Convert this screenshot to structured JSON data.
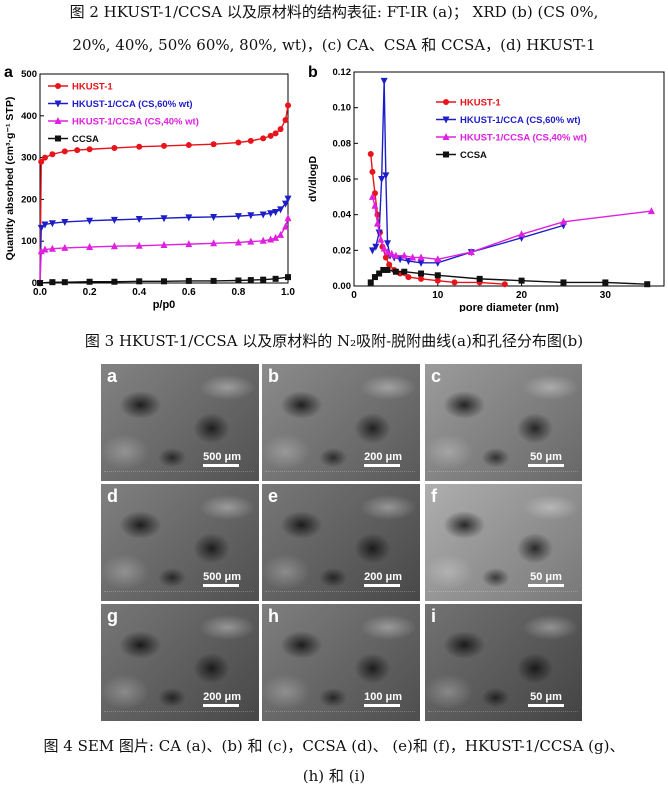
{
  "captions": {
    "fig2_line1": "图 2 HKUST-1/CCSA 以及原材料的结构表征: FT-IR (a)； XRD (b) (CS 0%,",
    "fig2_line2": "20%, 40%, 50% 60%, 80%, wt)，(c) CA、CSA 和 CCSA，(d) HKUST-1",
    "fig3": "图 3 HKUST-1/CCSA 以及原材料的 N₂吸附-脱附曲线(a)和孔径分布图(b)",
    "fig4_line1": "图 4 SEM 图片: CA (a)、(b)  和  (c)，CCSA (d)、  (e)和  (f)，HKUST-1/CCSA (g)、",
    "fig4_line2": "(h)  和  (i)"
  },
  "chart_data": [
    {
      "type": "line",
      "panel": "a",
      "xlabel": "p/p0",
      "ylabel": "Quantity absorbed (cm³·g⁻¹ STP)",
      "xlim": [
        0.0,
        1.0
      ],
      "ylim": [
        0,
        500
      ],
      "xticks": [
        "0.0",
        "0.2",
        "0.4",
        "0.6",
        "0.8",
        "1.0"
      ],
      "yticks": [
        "0",
        "100",
        "200",
        "300",
        "400",
        "500"
      ],
      "legend_position": "top-left",
      "series": [
        {
          "name": "HKUST-1",
          "color": "#e8141b",
          "marker": "circle",
          "x": [
            0.0,
            0.005,
            0.02,
            0.05,
            0.1,
            0.15,
            0.2,
            0.3,
            0.4,
            0.5,
            0.6,
            0.7,
            0.8,
            0.85,
            0.9,
            0.93,
            0.95,
            0.97,
            0.99,
            1.0
          ],
          "y": [
            0,
            290,
            300,
            308,
            315,
            318,
            320,
            323,
            326,
            328,
            330,
            332,
            336,
            340,
            346,
            352,
            358,
            368,
            390,
            425
          ]
        },
        {
          "name": "HKUST-1/CCA (CS,60% wt)",
          "color": "#1e1ec8",
          "marker": "triangle-down",
          "x": [
            0.0,
            0.005,
            0.02,
            0.05,
            0.1,
            0.2,
            0.3,
            0.4,
            0.5,
            0.6,
            0.7,
            0.8,
            0.85,
            0.9,
            0.93,
            0.95,
            0.97,
            0.99,
            1.0
          ],
          "y": [
            0,
            132,
            140,
            143,
            146,
            149,
            151,
            153,
            155,
            157,
            158,
            160,
            162,
            164,
            167,
            170,
            176,
            190,
            202
          ]
        },
        {
          "name": "HKUST-1/CCSA (CS,40% wt)",
          "color": "#e020e0",
          "marker": "triangle-up",
          "x": [
            0.0,
            0.005,
            0.02,
            0.05,
            0.1,
            0.2,
            0.3,
            0.4,
            0.5,
            0.6,
            0.7,
            0.8,
            0.85,
            0.9,
            0.93,
            0.95,
            0.97,
            0.99,
            1.0
          ],
          "y": [
            0,
            76,
            80,
            82,
            84,
            86,
            88,
            89,
            91,
            93,
            95,
            97,
            99,
            101,
            104,
            108,
            115,
            135,
            155
          ]
        },
        {
          "name": "CCSA",
          "color": "#111111",
          "marker": "square",
          "x": [
            0.0,
            0.05,
            0.1,
            0.2,
            0.3,
            0.4,
            0.5,
            0.6,
            0.7,
            0.8,
            0.85,
            0.9,
            0.95,
            1.0
          ],
          "y": [
            0,
            2,
            2,
            3,
            3,
            4,
            4,
            5,
            5,
            6,
            7,
            8,
            10,
            14
          ]
        }
      ]
    },
    {
      "type": "line",
      "panel": "b",
      "xlabel": "pore diameter (nm)",
      "ylabel": "dV/dlogD",
      "xlim": [
        0,
        37
      ],
      "ylim": [
        0.0,
        0.12
      ],
      "xticks": [
        "0",
        "10",
        "20",
        "30"
      ],
      "yticks": [
        "0.00",
        "0.02",
        "0.04",
        "0.06",
        "0.08",
        "0.10",
        "0.12"
      ],
      "legend_position": "top-right",
      "series": [
        {
          "name": "HKUST-1",
          "color": "#e8141b",
          "marker": "circle",
          "x": [
            2.0,
            2.2,
            2.5,
            2.8,
            3.1,
            3.4,
            3.8,
            4.2,
            4.8,
            5.5,
            6.5,
            8,
            10,
            12,
            15,
            18
          ],
          "y": [
            0.074,
            0.064,
            0.052,
            0.04,
            0.03,
            0.022,
            0.016,
            0.012,
            0.009,
            0.007,
            0.005,
            0.004,
            0.003,
            0.002,
            0.002,
            0.001
          ]
        },
        {
          "name": "HKUST-1/CCA (CS,60% wt)",
          "color": "#1e1ec8",
          "marker": "triangle-down",
          "x": [
            2.2,
            2.6,
            3.0,
            3.3,
            3.6,
            3.8,
            4.0,
            4.3,
            4.8,
            5.5,
            6.5,
            8,
            10,
            14,
            20,
            25
          ],
          "y": [
            0.02,
            0.022,
            0.03,
            0.06,
            0.115,
            0.062,
            0.024,
            0.017,
            0.016,
            0.015,
            0.014,
            0.013,
            0.013,
            0.019,
            0.027,
            0.034
          ]
        },
        {
          "name": "HKUST-1/CCSA (CS,40% wt)",
          "color": "#e020e0",
          "marker": "triangle-up",
          "x": [
            2.2,
            2.5,
            2.8,
            3.2,
            3.6,
            4.0,
            4.5,
            5,
            6,
            7,
            8,
            10,
            14,
            20,
            25,
            35.5
          ],
          "y": [
            0.05,
            0.045,
            0.035,
            0.026,
            0.021,
            0.019,
            0.018,
            0.017,
            0.017,
            0.016,
            0.016,
            0.015,
            0.019,
            0.029,
            0.036,
            0.042
          ]
        },
        {
          "name": "CCSA",
          "color": "#111111",
          "marker": "square",
          "x": [
            2.0,
            2.5,
            3.0,
            3.5,
            4,
            5,
            6,
            8,
            10,
            15,
            20,
            25,
            30,
            35
          ],
          "y": [
            0.002,
            0.005,
            0.007,
            0.009,
            0.009,
            0.008,
            0.008,
            0.007,
            0.006,
            0.004,
            0.003,
            0.002,
            0.002,
            0.001
          ]
        }
      ]
    }
  ],
  "sem_images": [
    {
      "letter": "a",
      "scale": "500 μm",
      "tone": "#6d6d6d"
    },
    {
      "letter": "b",
      "scale": "200 μm",
      "tone": "#777777"
    },
    {
      "letter": "c",
      "scale": "50 μm",
      "tone": "#8a8a8a"
    },
    {
      "letter": "d",
      "scale": "500 μm",
      "tone": "#6a6a6a"
    },
    {
      "letter": "e",
      "scale": "200 μm",
      "tone": "#606060"
    },
    {
      "letter": "f",
      "scale": "50 μm",
      "tone": "#a0a0a0"
    },
    {
      "letter": "g",
      "scale": "200 μm",
      "tone": "#5f5f5f"
    },
    {
      "letter": "h",
      "scale": "100 μm",
      "tone": "#686868"
    },
    {
      "letter": "i",
      "scale": "50 μm",
      "tone": "#5a5a5a"
    }
  ]
}
